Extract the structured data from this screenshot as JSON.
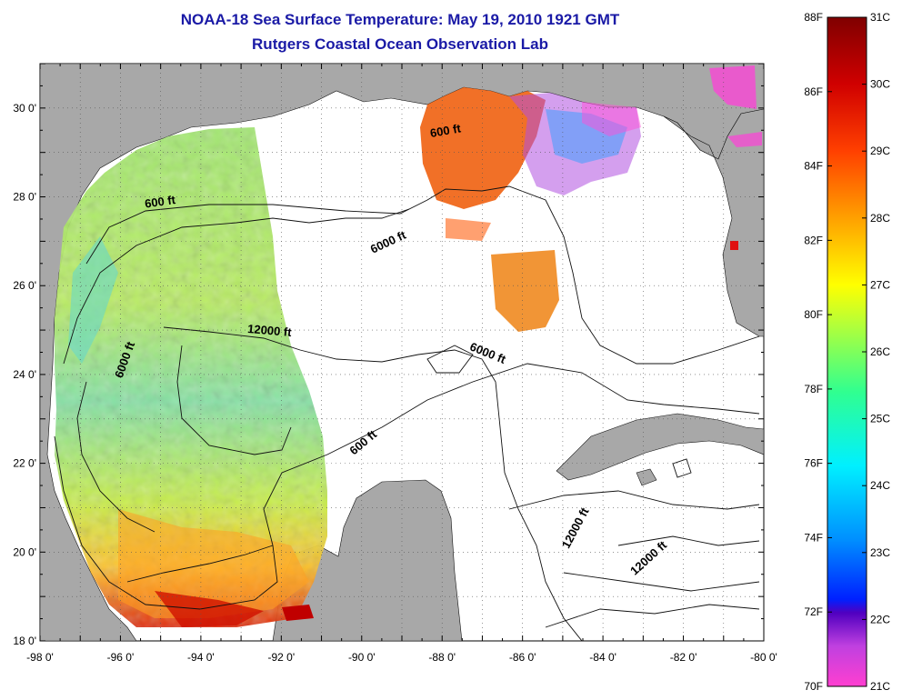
{
  "title": "NOAA-18 Sea Surface Temperature:  May 19, 2010 1921 GMT",
  "subtitle": "Rutgers Coastal Ocean Observation Lab",
  "map": {
    "lon_range": [
      -98,
      -80
    ],
    "lat_range": [
      18,
      31
    ],
    "x_ticks": [
      {
        "v": -98,
        "label": "-98 0'"
      },
      {
        "v": -96,
        "label": "-96 0'"
      },
      {
        "v": -94,
        "label": "-94 0'"
      },
      {
        "v": -92,
        "label": "-92 0'"
      },
      {
        "v": -90,
        "label": "-90 0'"
      },
      {
        "v": -88,
        "label": "-88 0'"
      },
      {
        "v": -86,
        "label": "-86 0'"
      },
      {
        "v": -84,
        "label": "-84 0'"
      },
      {
        "v": -82,
        "label": "-82 0'"
      },
      {
        "v": -80,
        "label": "-80 0'"
      }
    ],
    "y_ticks": [
      {
        "v": 18,
        "label": "18 0'"
      },
      {
        "v": 20,
        "label": "20 0'"
      },
      {
        "v": 22,
        "label": "22 0'"
      },
      {
        "v": 24,
        "label": "24 0'"
      },
      {
        "v": 26,
        "label": "26 0'"
      },
      {
        "v": 28,
        "label": "28 0'"
      },
      {
        "v": 30,
        "label": "30 0'"
      }
    ],
    "grid": "dotted",
    "land_color": "#a8a8a8",
    "contour_labels": [
      {
        "text": "600 ft",
        "lon": -95.0,
        "lat": 27.8,
        "angle": -8
      },
      {
        "text": "600 ft",
        "lon": -87.9,
        "lat": 29.4,
        "angle": -10
      },
      {
        "text": "6000 ft",
        "lon": -89.3,
        "lat": 26.9,
        "angle": -25
      },
      {
        "text": "12000 ft",
        "lon": -92.3,
        "lat": 24.9,
        "angle": 5
      },
      {
        "text": "6000 ft",
        "lon": -86.9,
        "lat": 24.4,
        "angle": 22
      },
      {
        "text": "6000 ft",
        "lon": -95.8,
        "lat": 24.3,
        "angle": -70
      },
      {
        "text": "600 ft",
        "lon": -89.9,
        "lat": 22.4,
        "angle": -40
      },
      {
        "text": "12000 ft",
        "lon": -84.6,
        "lat": 20.5,
        "angle": -62
      },
      {
        "text": "12000 ft",
        "lon": -82.8,
        "lat": 19.8,
        "angle": -42
      }
    ]
  },
  "colorbar": {
    "f_labels": [
      "88F",
      "86F",
      "84F",
      "82F",
      "80F",
      "78F",
      "76F",
      "74F",
      "72F",
      "70F"
    ],
    "c_labels": [
      "31C",
      "30C",
      "29C",
      "28C",
      "27C",
      "26C",
      "25C",
      "24C",
      "23C",
      "22C",
      "21C"
    ],
    "range_c": [
      21,
      31
    ],
    "stops": [
      "#ff3fd0",
      "#c040e0",
      "#5000c0",
      "#0030ff",
      "#0090ff",
      "#00e0ff",
      "#30ff90",
      "#c0ff30",
      "#ffff00",
      "#ff9000",
      "#ff2000",
      "#c00000",
      "#800000"
    ]
  }
}
